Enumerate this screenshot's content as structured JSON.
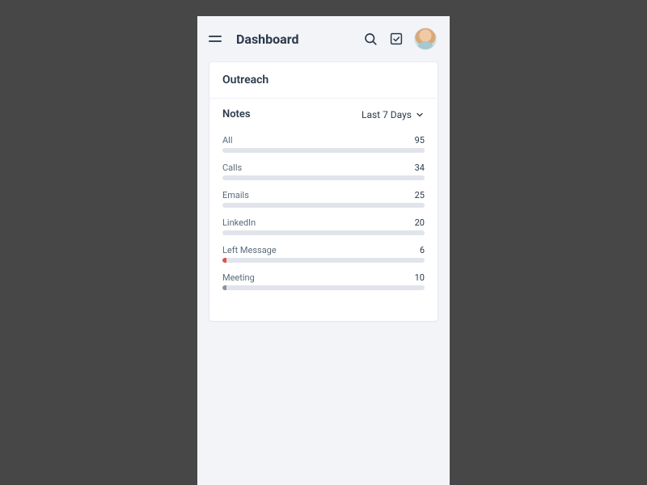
{
  "colors": {
    "page_bg": "#474747",
    "phone_bg": "#f2f4f8",
    "card_bg": "#ffffff",
    "text_primary": "#2b3a4a",
    "text_secondary": "#5a6b7b",
    "bar_track": "#e1e5eb",
    "divider": "#edf0f4"
  },
  "header": {
    "title": "Dashboard"
  },
  "card": {
    "title": "Outreach",
    "section_label": "Notes",
    "filter_label": "Last 7 Days",
    "max_value": 95,
    "rows": [
      {
        "label": "All",
        "value": 95,
        "fill_pct": 100,
        "fill_color": "#e1e5eb"
      },
      {
        "label": "Calls",
        "value": 34,
        "fill_pct": 100,
        "fill_color": "#e1e5eb"
      },
      {
        "label": "Emails",
        "value": 25,
        "fill_pct": 100,
        "fill_color": "#e1e5eb"
      },
      {
        "label": "LinkedIn",
        "value": 20,
        "fill_pct": 100,
        "fill_color": "#e1e5eb"
      },
      {
        "label": "Left Message",
        "value": 6,
        "fill_pct": 2,
        "fill_color": "#d9534f"
      },
      {
        "label": "Meeting",
        "value": 10,
        "fill_pct": 2,
        "fill_color": "#8a93a0"
      }
    ]
  }
}
